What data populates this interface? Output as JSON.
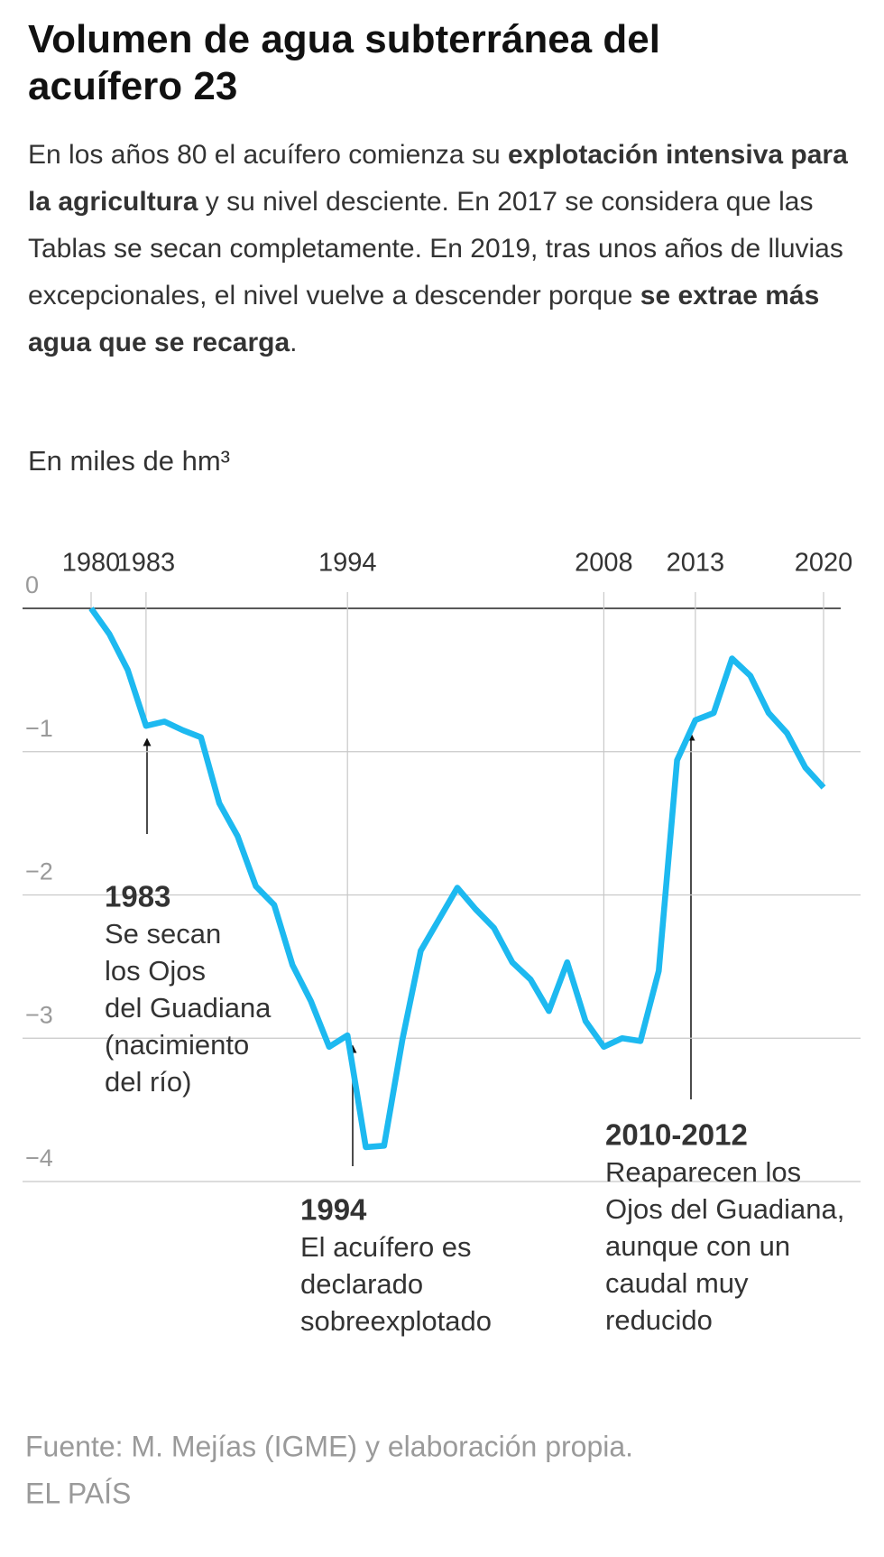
{
  "chart_data": {
    "type": "line",
    "title": "Volumen de agua subterránea del acuífero 23",
    "subtitle": [
      {
        "text": "En los años 80 el acuífero comienza su ",
        "bold": false
      },
      {
        "text": "explotación intensiva para la agricultura",
        "bold": true
      },
      {
        "text": " y su nivel desciente. En 2017 se considera que las Tablas se secan completamente. En 2019, tras unos años de lluvias excepcionales, el nivel vuelve a descender porque ",
        "bold": false
      },
      {
        "text": "se extrae más agua que se recarga",
        "bold": true
      },
      {
        "text": ".",
        "bold": false
      }
    ],
    "y_label": "En miles de hm³",
    "x": [
      1980,
      1981,
      1982,
      1983,
      1984,
      1985,
      1986,
      1987,
      1988,
      1989,
      1990,
      1991,
      1992,
      1993,
      1994,
      1995,
      1996,
      1997,
      1998,
      1999,
      2000,
      2001,
      2002,
      2003,
      2004,
      2005,
      2006,
      2007,
      2008,
      2009,
      2010,
      2011,
      2012,
      2013,
      2014,
      2015,
      2016,
      2017,
      2018,
      2019,
      2020
    ],
    "series": [
      {
        "color": "#1db9f0",
        "values": [
          0,
          -0.18,
          -0.43,
          -0.82,
          -0.79,
          -0.85,
          -0.9,
          -1.36,
          -1.59,
          -1.94,
          -2.07,
          -2.49,
          -2.74,
          -3.06,
          -2.98,
          -3.76,
          -3.75,
          -3.01,
          -2.39,
          -2.17,
          -1.95,
          -2.1,
          -2.23,
          -2.47,
          -2.59,
          -2.81,
          -2.47,
          -2.88,
          -3.06,
          -3,
          -3.02,
          -2.53,
          -1.06,
          -0.78,
          -0.73,
          -0.35,
          -0.47,
          -0.73,
          -0.87,
          -1.11,
          -1.25
        ]
      }
    ],
    "xlim": [
      1980,
      2020
    ],
    "xticks": [
      1980,
      1983,
      1994,
      2008,
      2013,
      2020
    ],
    "ylim": [
      -4,
      0
    ],
    "yticks": [
      0,
      {
        "value": -1,
        "label": "−1"
      },
      {
        "value": -2,
        "label": "−2"
      },
      {
        "value": -3,
        "label": "−3"
      },
      {
        "value": -4,
        "label": "−4"
      }
    ],
    "grid": true,
    "annotations": [
      {
        "title": "1983",
        "lines": [
          "Se secan",
          "los Ojos",
          "del Guadiana",
          "(nacimiento",
          "del río)"
        ]
      },
      {
        "title": "1994",
        "lines": [
          "El acuífero es",
          "declarado",
          "sobreexplotado"
        ]
      },
      {
        "title": "2010-2012",
        "lines": [
          "Reaparecen los",
          "Ojos del Guadiana,",
          "aunque con un",
          "caudal muy",
          "reducido"
        ]
      }
    ],
    "source": "Fuente: M. Mejías (IGME) y elaboración propia.",
    "brand": "EL PAÍS"
  }
}
